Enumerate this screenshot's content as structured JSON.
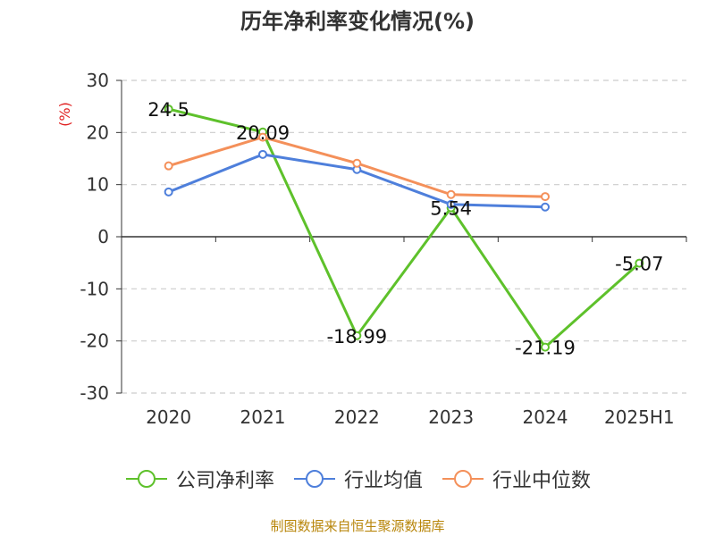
{
  "title": "历年净利率变化情况(%)",
  "source": "制图数据来自恒生聚源数据库",
  "chart_data": {
    "type": "line",
    "title": "历年净利率变化情况(%)",
    "ylabel": "(%)",
    "xlabel": "",
    "categories": [
      "2020",
      "2021",
      "2022",
      "2023",
      "2024",
      "2025H1"
    ],
    "ylim": [
      -30,
      30
    ],
    "yticks": [
      30,
      20,
      10,
      0,
      -10,
      -20,
      -30
    ],
    "grid": true,
    "legend_position": "bottom",
    "series": [
      {
        "name": "公司净利率",
        "color": "#5ec12b",
        "values": [
          24.5,
          20.09,
          -18.99,
          5.54,
          -21.19,
          -5.07
        ],
        "labels": [
          "24.5",
          "20.09",
          "-18.99",
          "5.54",
          "-21.19",
          "-5.07"
        ]
      },
      {
        "name": "行业均值",
        "color": "#4e7fdb",
        "values": [
          8.6,
          15.8,
          12.9,
          6.2,
          5.7,
          null
        ]
      },
      {
        "name": "行业中位数",
        "color": "#f4905a",
        "values": [
          13.6,
          19.1,
          14.1,
          8.1,
          7.7,
          null
        ]
      }
    ]
  }
}
